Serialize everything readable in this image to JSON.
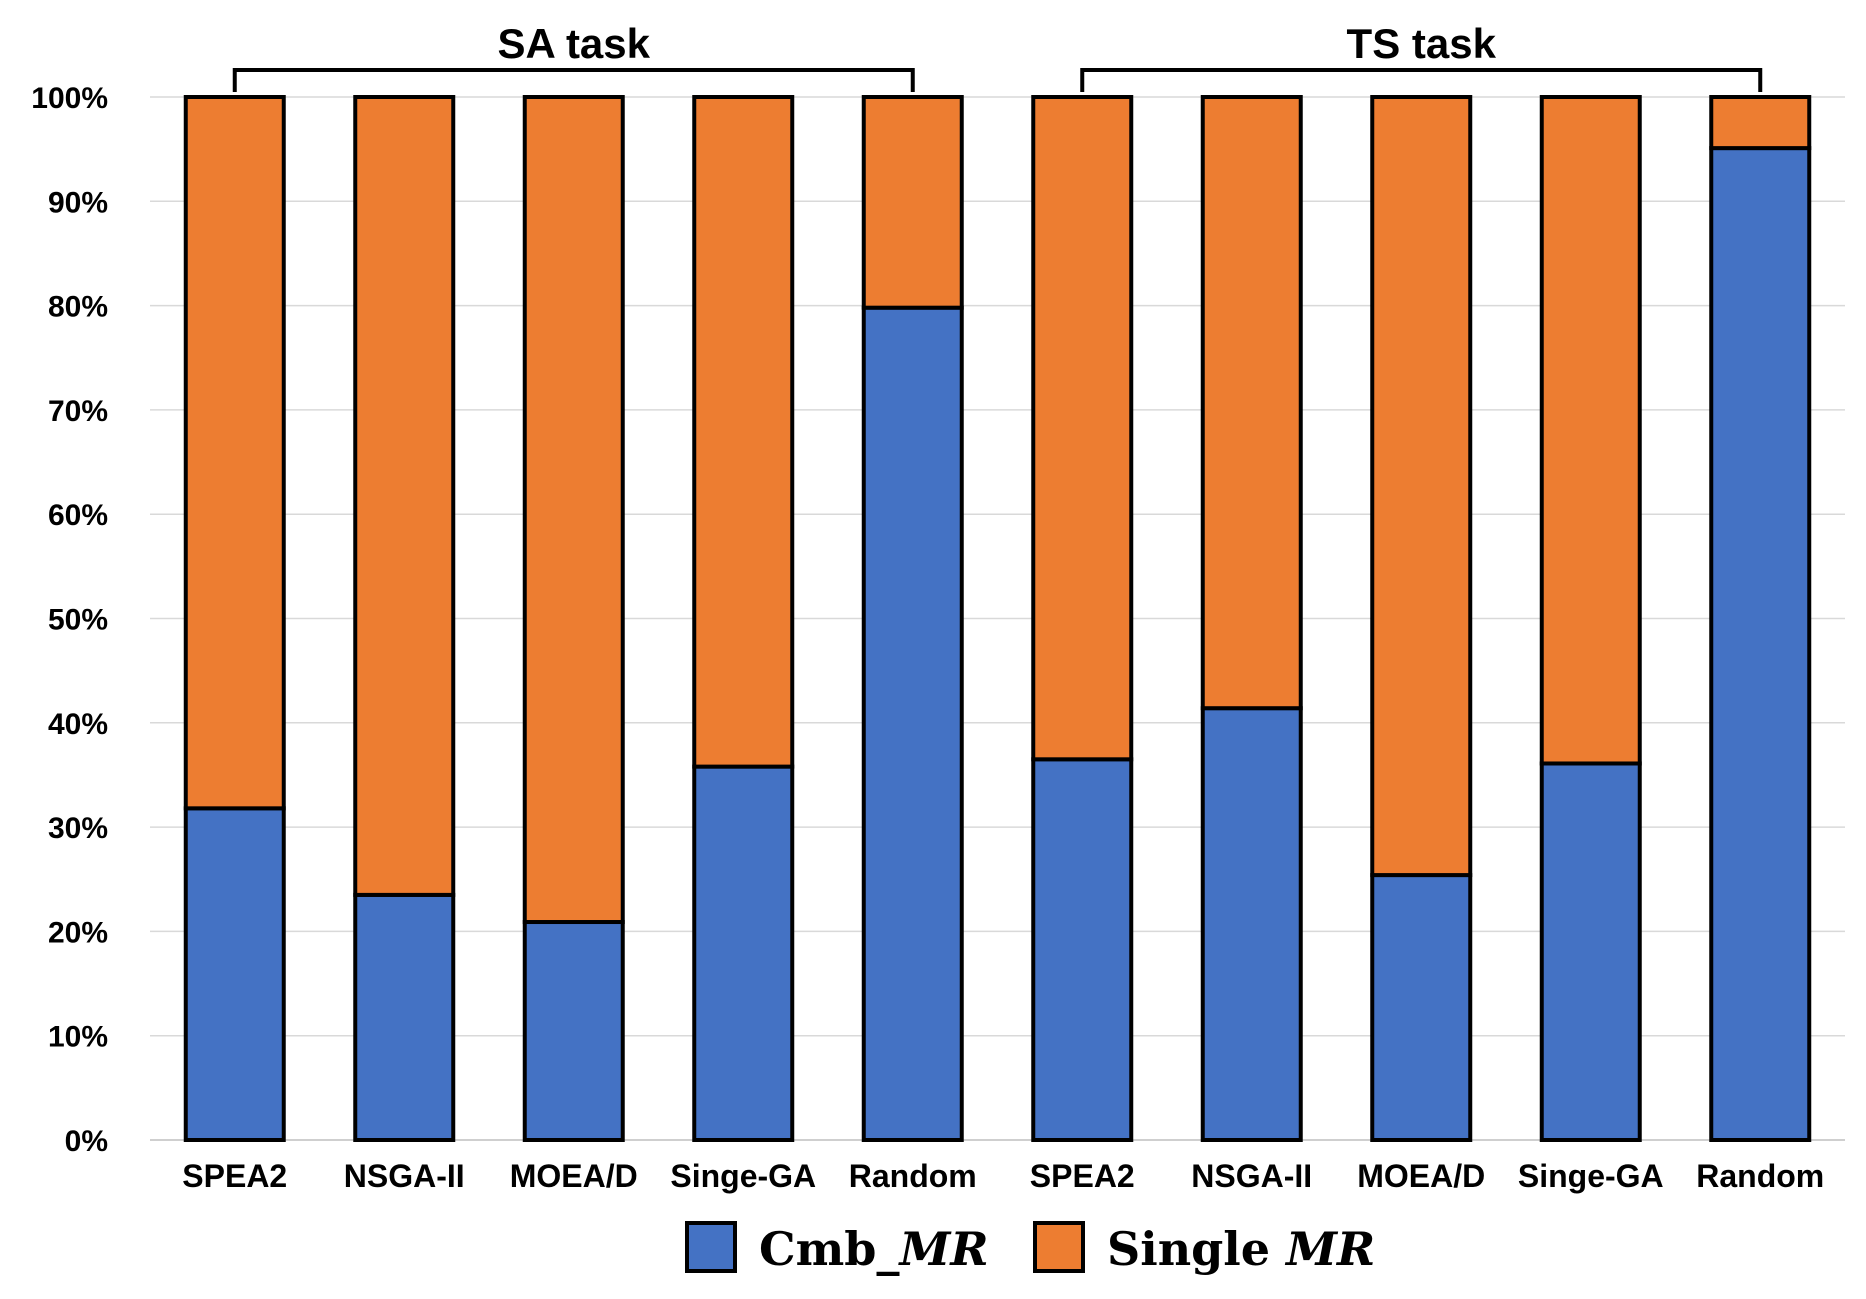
{
  "chart_data": {
    "type": "bar",
    "stacked": true,
    "percent_axis": true,
    "categories": [
      "SPEA2",
      "NSGA-II",
      "MOEA/D",
      "Singe-GA",
      "Random",
      "SPEA2",
      "NSGA-II",
      "MOEA/D",
      "Singe-GA",
      "Random"
    ],
    "groups": [
      {
        "label": "SA task",
        "start": 0,
        "end": 4
      },
      {
        "label": "TS task",
        "start": 5,
        "end": 9
      }
    ],
    "series": [
      {
        "name_prefix": "Cmb_",
        "name_italic": "MR",
        "color": "#4472C4",
        "values": [
          31.8,
          23.5,
          20.9,
          35.8,
          79.8,
          36.5,
          41.4,
          25.4,
          36.1,
          95.1
        ]
      },
      {
        "name_prefix": "Single ",
        "name_italic": "MR",
        "color": "#ED7D31",
        "values": [
          68.2,
          76.5,
          79.1,
          64.2,
          20.2,
          63.5,
          58.6,
          74.6,
          63.9,
          4.9
        ]
      }
    ],
    "y_ticks": [
      "0%",
      "10%",
      "20%",
      "30%",
      "40%",
      "50%",
      "60%",
      "70%",
      "80%",
      "90%",
      "100%"
    ],
    "ylim": [
      0,
      100
    ],
    "grid": true,
    "legend_position": "bottom-center"
  }
}
